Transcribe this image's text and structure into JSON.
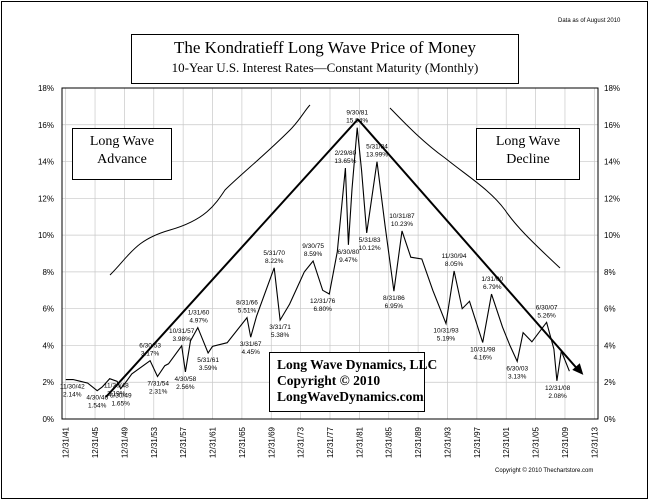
{
  "data_note": "Data as of August 2010",
  "copyright_note": "Copyright © 2010 Thechartstore.com",
  "chart_data": {
    "type": "line",
    "title": "The Kondratieff Long Wave Price of Money",
    "subtitle": "10-Year U.S. Interest Rates—Constant Maturity (Monthly)",
    "xlabel": "",
    "ylabel": "",
    "ylim": [
      0,
      18
    ],
    "y_ticks": [
      "0%",
      "2%",
      "4%",
      "6%",
      "8%",
      "10%",
      "12%",
      "14%",
      "16%",
      "18%"
    ],
    "x_ticks": [
      "12/31/41",
      "12/31/45",
      "12/31/49",
      "12/31/53",
      "12/31/57",
      "12/31/61",
      "12/31/65",
      "12/31/69",
      "12/31/73",
      "12/31/77",
      "12/31/81",
      "12/31/85",
      "12/31/89",
      "12/31/93",
      "12/31/97",
      "12/31/01",
      "12/31/05",
      "12/31/09",
      "12/31/13"
    ],
    "grid": true,
    "series": [
      {
        "values": [
          {
            "x": 1942.0,
            "y": 2.14
          },
          {
            "x": 1943.0,
            "y": 2.15
          },
          {
            "x": 1944.0,
            "y": 2.05
          },
          {
            "x": 1945.0,
            "y": 1.95
          },
          {
            "x": 1946.3,
            "y": 1.54
          },
          {
            "x": 1947.0,
            "y": 1.75
          },
          {
            "x": 1948.0,
            "y": 2.19
          },
          {
            "x": 1949.0,
            "y": 2.05
          },
          {
            "x": 1949.5,
            "y": 1.65
          },
          {
            "x": 1950.0,
            "y": 1.9
          },
          {
            "x": 1951.0,
            "y": 2.45
          },
          {
            "x": 1953.5,
            "y": 3.17
          },
          {
            "x": 1954.5,
            "y": 2.31
          },
          {
            "x": 1955.5,
            "y": 2.9
          },
          {
            "x": 1956.0,
            "y": 3.0
          },
          {
            "x": 1957.8,
            "y": 3.98
          },
          {
            "x": 1958.3,
            "y": 2.56
          },
          {
            "x": 1959.0,
            "y": 4.25
          },
          {
            "x": 1960.0,
            "y": 4.97
          },
          {
            "x": 1961.4,
            "y": 3.59
          },
          {
            "x": 1962.0,
            "y": 3.95
          },
          {
            "x": 1964.0,
            "y": 4.15
          },
          {
            "x": 1966.7,
            "y": 5.51
          },
          {
            "x": 1967.2,
            "y": 4.45
          },
          {
            "x": 1968.0,
            "y": 5.6
          },
          {
            "x": 1970.4,
            "y": 8.22
          },
          {
            "x": 1971.2,
            "y": 5.38
          },
          {
            "x": 1972.5,
            "y": 6.25
          },
          {
            "x": 1974.5,
            "y": 8.0
          },
          {
            "x": 1975.7,
            "y": 8.59
          },
          {
            "x": 1977.0,
            "y": 7.0
          },
          {
            "x": 1977.9,
            "y": 6.8
          },
          {
            "x": 1979.0,
            "y": 9.1
          },
          {
            "x": 1980.1,
            "y": 13.65
          },
          {
            "x": 1980.5,
            "y": 9.47
          },
          {
            "x": 1981.0,
            "y": 12.5
          },
          {
            "x": 1981.7,
            "y": 15.84
          },
          {
            "x": 1982.3,
            "y": 13.5
          },
          {
            "x": 1983.0,
            "y": 10.12
          },
          {
            "x": 1983.5,
            "y": 11.5
          },
          {
            "x": 1984.4,
            "y": 13.99
          },
          {
            "x": 1985.5,
            "y": 10.5
          },
          {
            "x": 1986.7,
            "y": 6.95
          },
          {
            "x": 1987.8,
            "y": 10.23
          },
          {
            "x": 1989.0,
            "y": 8.8
          },
          {
            "x": 1990.5,
            "y": 8.7
          },
          {
            "x": 1992.0,
            "y": 7.0
          },
          {
            "x": 1993.8,
            "y": 5.19
          },
          {
            "x": 1994.9,
            "y": 8.05
          },
          {
            "x": 1996.0,
            "y": 6.0
          },
          {
            "x": 1997.0,
            "y": 6.4
          },
          {
            "x": 1998.8,
            "y": 4.16
          },
          {
            "x": 2000.0,
            "y": 6.79
          },
          {
            "x": 2001.5,
            "y": 5.0
          },
          {
            "x": 2002.5,
            "y": 4.0
          },
          {
            "x": 2003.5,
            "y": 3.13
          },
          {
            "x": 2004.3,
            "y": 4.7
          },
          {
            "x": 2005.5,
            "y": 4.2
          },
          {
            "x": 2007.5,
            "y": 5.26
          },
          {
            "x": 2008.5,
            "y": 3.8
          },
          {
            "x": 2008.9,
            "y": 2.08
          },
          {
            "x": 2009.5,
            "y": 3.7
          },
          {
            "x": 2010.6,
            "y": 2.6
          }
        ]
      }
    ],
    "annotations": [
      {
        "date": "11/30/42",
        "value": "2.14%",
        "x": 1942.9,
        "y": 2.14
      },
      {
        "date": "4/30/46",
        "value": "1.54%",
        "x": 1946.3,
        "y": 1.54
      },
      {
        "date": "11/30/48",
        "value": "2.19%",
        "x": 1948.9,
        "y": 2.19
      },
      {
        "date": "6/30/49",
        "value": "1.65%",
        "x": 1949.5,
        "y": 1.65
      },
      {
        "date": "6/30/53",
        "value": "3.17%",
        "x": 1953.5,
        "y": 3.17
      },
      {
        "date": "7/31/54",
        "value": "2.31%",
        "x": 1954.6,
        "y": 2.31
      },
      {
        "date": "10/31/57",
        "value": "3.98%",
        "x": 1957.8,
        "y": 3.98
      },
      {
        "date": "4/30/58",
        "value": "2.56%",
        "x": 1958.3,
        "y": 2.56
      },
      {
        "date": "1/31/60",
        "value": "4.97%",
        "x": 1960.1,
        "y": 4.97
      },
      {
        "date": "5/31/61",
        "value": "3.59%",
        "x": 1961.4,
        "y": 3.59
      },
      {
        "date": "8/31/66",
        "value": "5.51%",
        "x": 1966.7,
        "y": 5.51
      },
      {
        "date": "3/31/67",
        "value": "4.45%",
        "x": 1967.2,
        "y": 4.45
      },
      {
        "date": "5/31/70",
        "value": "8.22%",
        "x": 1970.4,
        "y": 8.22
      },
      {
        "date": "3/31/71",
        "value": "5.38%",
        "x": 1971.2,
        "y": 5.38
      },
      {
        "date": "9/30/75",
        "value": "8.59%",
        "x": 1975.7,
        "y": 8.59
      },
      {
        "date": "12/31/76",
        "value": "6.80%",
        "x": 1977.0,
        "y": 6.8
      },
      {
        "date": "2/29/80",
        "value": "13.65%",
        "x": 1980.1,
        "y": 13.65
      },
      {
        "date": "6/30/80",
        "value": "9.47%",
        "x": 1980.5,
        "y": 9.47
      },
      {
        "date": "9/30/81",
        "value": "15.84%",
        "x": 1981.7,
        "y": 15.84
      },
      {
        "date": "5/31/83",
        "value": "10.12%",
        "x": 1983.4,
        "y": 10.12
      },
      {
        "date": "5/31/84",
        "value": "13.99%",
        "x": 1984.4,
        "y": 13.99
      },
      {
        "date": "8/31/86",
        "value": "6.95%",
        "x": 1986.7,
        "y": 6.95
      },
      {
        "date": "10/31/87",
        "value": "10.23%",
        "x": 1987.8,
        "y": 10.23
      },
      {
        "date": "10/31/93",
        "value": "5.19%",
        "x": 1993.8,
        "y": 5.19
      },
      {
        "date": "11/30/94",
        "value": "8.05%",
        "x": 1994.9,
        "y": 8.05
      },
      {
        "date": "10/31/98",
        "value": "4.16%",
        "x": 1998.8,
        "y": 4.16
      },
      {
        "date": "1/31/00",
        "value": "6.79%",
        "x": 2000.1,
        "y": 6.79
      },
      {
        "date": "6/30/03",
        "value": "3.13%",
        "x": 2003.5,
        "y": 3.13
      },
      {
        "date": "6/30/07",
        "value": "5.26%",
        "x": 2007.5,
        "y": 5.26
      },
      {
        "date": "12/31/08",
        "value": "2.08%",
        "x": 2009.0,
        "y": 2.08
      }
    ]
  },
  "callouts": {
    "advance": [
      "Long Wave",
      "Advance"
    ],
    "decline": [
      "Long Wave",
      "Decline"
    ]
  },
  "credits": {
    "line1": "Long Wave Dynamics, LLC",
    "line2": "Copyright © 2010",
    "line3": "LongWaveDynamics.com"
  }
}
